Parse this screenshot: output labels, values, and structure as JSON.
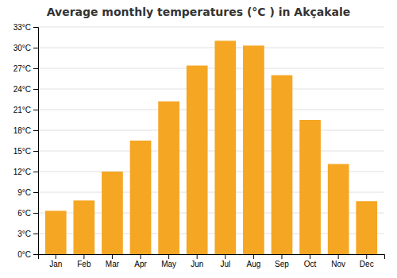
{
  "chart_data": {
    "type": "bar",
    "title": "Average monthly temperatures (°C ) in Akçakale",
    "categories": [
      "Jan",
      "Feb",
      "Mar",
      "Apr",
      "May",
      "Jun",
      "Jul",
      "Aug",
      "Sep",
      "Oct",
      "Nov",
      "Dec"
    ],
    "values": [
      6.3,
      7.8,
      12.0,
      16.5,
      22.2,
      27.4,
      31.0,
      30.3,
      26.0,
      19.5,
      13.1,
      7.7
    ],
    "color": "#F5A623",
    "ylim": [
      0,
      33
    ],
    "yticks": [
      {
        "value": 0,
        "label": "0°C"
      },
      {
        "value": 3,
        "label": "3°C"
      },
      {
        "value": 6,
        "label": "6°C"
      },
      {
        "value": 9,
        "label": "9°C"
      },
      {
        "value": 12,
        "label": "12°C"
      },
      {
        "value": 15,
        "label": "15°C"
      },
      {
        "value": 18,
        "label": "18°C"
      },
      {
        "value": 21,
        "label": "21°C"
      },
      {
        "value": 24,
        "label": "24°C"
      },
      {
        "value": 27,
        "label": "27°C"
      },
      {
        "value": 30,
        "label": "30°C"
      },
      {
        "value": 33,
        "label": "33°C"
      }
    ],
    "grid": true
  }
}
